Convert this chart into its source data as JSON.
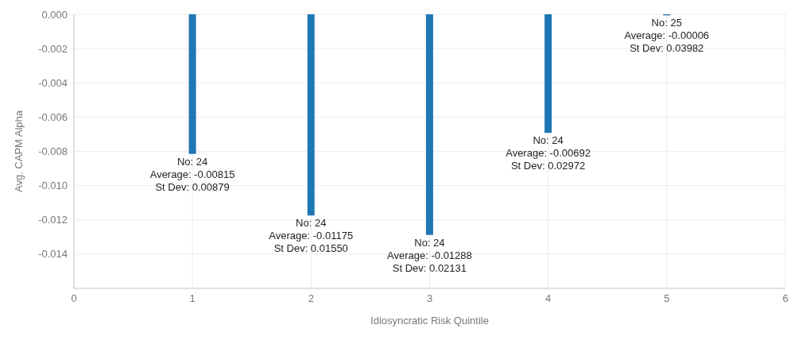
{
  "chart_data": {
    "type": "bar",
    "xlabel": "Idiosyncratic Risk Quintile",
    "ylabel": "Avg. CAPM Alpha",
    "x": [
      1,
      2,
      3,
      4,
      5
    ],
    "values": [
      -0.00815,
      -0.01175,
      -0.01288,
      -0.00692,
      -6e-05
    ],
    "value_labels": [
      "No: 24\nAverage: -0.00815\nSt Dev: 0.00879",
      "No: 24\nAverage: -0.01175\nSt Dev: 0.01550",
      "No: 24\nAverage: -0.01288\nSt Dev: 0.02131",
      "No: 24\nAverage: -0.00692\nSt Dev: 0.02972",
      "No: 25\nAverage: -0.00006\nSt Dev: 0.03982"
    ],
    "color": "#1f77b4",
    "xlim": [
      0,
      6
    ],
    "xticks": [
      0,
      1,
      2,
      3,
      4,
      5,
      6
    ],
    "ylim": [
      -0.016,
      0
    ],
    "yticks": [
      {
        "value": 0,
        "label": "0.000"
      },
      {
        "value": -0.002,
        "label": "-0.002"
      },
      {
        "value": -0.004,
        "label": "-0.004"
      },
      {
        "value": -0.006,
        "label": "-0.006"
      },
      {
        "value": -0.008,
        "label": "-0.008"
      },
      {
        "value": -0.01,
        "label": "-0.010"
      },
      {
        "value": -0.012,
        "label": "-0.012"
      },
      {
        "value": -0.014,
        "label": "-0.014"
      }
    ],
    "grid": true
  }
}
